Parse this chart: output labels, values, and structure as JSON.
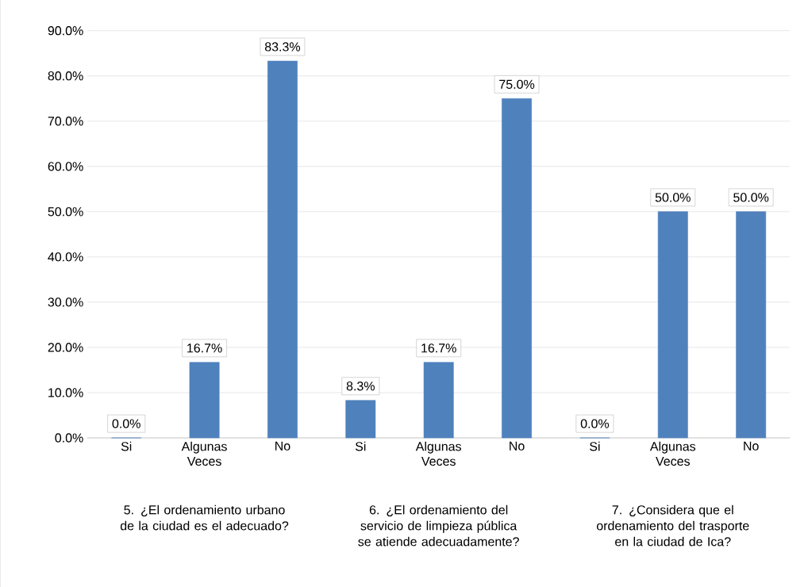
{
  "chart_data": {
    "type": "bar",
    "categories": [
      "Si",
      "Algunas Veces",
      "No",
      "Si",
      "Algunas Veces",
      "No",
      "Si",
      "Algunas Veces",
      "No"
    ],
    "values": [
      0,
      16.7,
      83.3,
      8.3,
      16.7,
      75.0,
      0,
      50.0,
      50.0
    ],
    "value_labels": [
      "0.0%",
      "16.7%",
      "83.3%",
      "8.3%",
      "16.7%",
      "75.0%",
      "0.0%",
      "50.0%",
      "50.0%"
    ],
    "color": "#4f81bd",
    "ylim": [
      0,
      90
    ],
    "yticks": [
      {
        "value": 0,
        "label": "0.0%"
      },
      {
        "value": 10,
        "label": "10.0%"
      },
      {
        "value": 20,
        "label": "20.0%"
      },
      {
        "value": 30,
        "label": "30.0%"
      },
      {
        "value": 40,
        "label": "40.0%"
      },
      {
        "value": 50,
        "label": "50.0%"
      },
      {
        "value": 60,
        "label": "60.0%"
      },
      {
        "value": 70,
        "label": "70.0%"
      },
      {
        "value": 80,
        "label": "80.0%"
      },
      {
        "value": 90,
        "label": "90.0%"
      }
    ],
    "grid": "y",
    "annotations": [
      "5.  ¿El ordenamiento urbano de la ciudad es el adecuado?",
      "6.  ¿El ordenamiento del servicio de limpieza pública se atiende adecuadamente?",
      "7.  ¿Considera que el ordenamiento del trasporte en la ciudad de Ica?"
    ]
  }
}
